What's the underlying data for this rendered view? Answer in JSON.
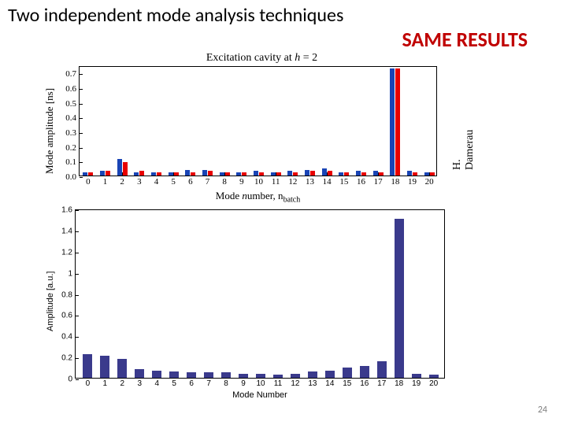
{
  "title": "Two independent mode analysis techniques",
  "same_results": "SAME RESULTS",
  "same_results_color": "#c00000",
  "credit": "H. Damerau",
  "page_number": "24",
  "chart1": {
    "title": "Excitation cavity at h = 2",
    "xlabel": "Mode number, n",
    "xlabel_sub": "batch",
    "ylabel": "Mode amplitude [ns]",
    "ylim": [
      0.0,
      0.75
    ],
    "yticks": [
      0.0,
      0.1,
      0.2,
      0.3,
      0.4,
      0.5,
      0.6,
      0.7
    ],
    "xticks": [
      0,
      1,
      2,
      3,
      4,
      5,
      6,
      7,
      8,
      9,
      10,
      11,
      12,
      13,
      14,
      15,
      16,
      17,
      18,
      19,
      20
    ],
    "bar_width": 0.28,
    "series_colors": [
      "#1944b5",
      "#e80000"
    ],
    "series": [
      {
        "x": 0,
        "y": [
          0.02,
          0.02
        ]
      },
      {
        "x": 1,
        "y": [
          0.03,
          0.03
        ]
      },
      {
        "x": 2,
        "y": [
          0.11,
          0.09
        ]
      },
      {
        "x": 3,
        "y": [
          0.02,
          0.03
        ]
      },
      {
        "x": 4,
        "y": [
          0.02,
          0.02
        ]
      },
      {
        "x": 5,
        "y": [
          0.02,
          0.02
        ]
      },
      {
        "x": 6,
        "y": [
          0.04,
          0.02
        ]
      },
      {
        "x": 7,
        "y": [
          0.04,
          0.03
        ]
      },
      {
        "x": 8,
        "y": [
          0.02,
          0.02
        ]
      },
      {
        "x": 9,
        "y": [
          0.02,
          0.02
        ]
      },
      {
        "x": 10,
        "y": [
          0.03,
          0.02
        ]
      },
      {
        "x": 11,
        "y": [
          0.02,
          0.02
        ]
      },
      {
        "x": 12,
        "y": [
          0.03,
          0.02
        ]
      },
      {
        "x": 13,
        "y": [
          0.04,
          0.03
        ]
      },
      {
        "x": 14,
        "y": [
          0.05,
          0.03
        ]
      },
      {
        "x": 15,
        "y": [
          0.02,
          0.02
        ]
      },
      {
        "x": 16,
        "y": [
          0.03,
          0.02
        ]
      },
      {
        "x": 17,
        "y": [
          0.03,
          0.02
        ]
      },
      {
        "x": 18,
        "y": [
          0.73,
          0.73
        ]
      },
      {
        "x": 19,
        "y": [
          0.03,
          0.02
        ]
      },
      {
        "x": 20,
        "y": [
          0.02,
          0.02
        ]
      }
    ]
  },
  "chart2": {
    "xlabel": "Mode Number",
    "ylabel": "Amplitude [a.u.]",
    "ylim": [
      0,
      1.6
    ],
    "yticks": [
      0,
      0.2,
      0.4,
      0.6,
      0.8,
      1,
      1.2,
      1.4,
      1.6
    ],
    "xticks": [
      0,
      1,
      2,
      3,
      4,
      5,
      6,
      7,
      8,
      9,
      10,
      11,
      12,
      13,
      14,
      15,
      16,
      17,
      18,
      19,
      20
    ],
    "bar_width": 0.55,
    "bar_color": "#3a3a8c",
    "values": [
      0.22,
      0.21,
      0.18,
      0.08,
      0.07,
      0.06,
      0.05,
      0.05,
      0.05,
      0.04,
      0.04,
      0.03,
      0.04,
      0.06,
      0.07,
      0.1,
      0.11,
      0.16,
      1.5,
      0.04,
      0.03
    ]
  }
}
